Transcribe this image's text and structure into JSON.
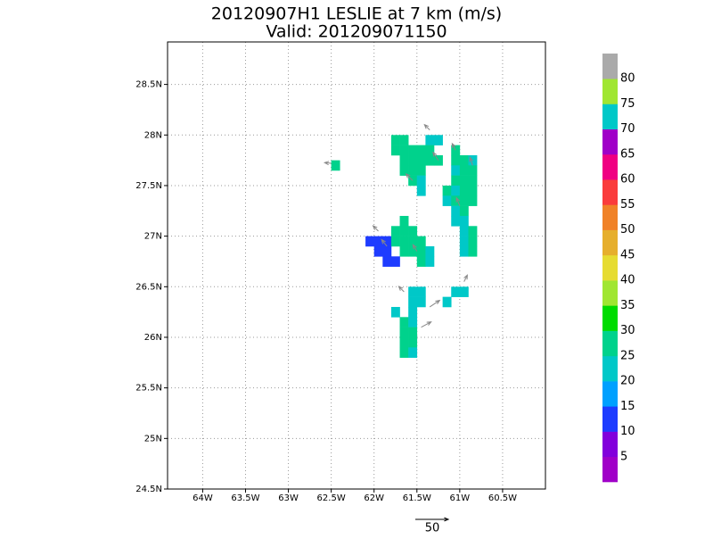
{
  "chart_data": {
    "type": "map",
    "title": "20120907H1 LESLIE at 7 km (m/s)",
    "subtitle": "Valid: 201209071150",
    "xlim": [
      -64.41,
      -60.0
    ],
    "ylim": [
      24.5,
      28.92
    ],
    "xticks": [
      {
        "value": -64,
        "label": "64W"
      },
      {
        "value": -63.5,
        "label": "63.5W"
      },
      {
        "value": -63,
        "label": "63W"
      },
      {
        "value": -62.5,
        "label": "62.5W"
      },
      {
        "value": -62,
        "label": "62W"
      },
      {
        "value": -61.5,
        "label": "61.5W"
      },
      {
        "value": -61,
        "label": "61W"
      },
      {
        "value": -60.5,
        "label": "60.5W"
      }
    ],
    "yticks": [
      {
        "value": 24.5,
        "label": "24.5N"
      },
      {
        "value": 25,
        "label": "25N"
      },
      {
        "value": 25.5,
        "label": "25.5N"
      },
      {
        "value": 26,
        "label": "26N"
      },
      {
        "value": 26.5,
        "label": "26.5N"
      },
      {
        "value": 27,
        "label": "27N"
      },
      {
        "value": 27.5,
        "label": "27.5N"
      },
      {
        "value": 28,
        "label": "28N"
      },
      {
        "value": 28.5,
        "label": "28.5N"
      }
    ],
    "grid": true,
    "colorbar": {
      "levels": [
        5,
        10,
        15,
        20,
        25,
        30,
        35,
        40,
        45,
        50,
        55,
        60,
        65,
        70,
        75,
        80
      ],
      "colors": [
        "#a000c8",
        "#8200dc",
        "#1e3cff",
        "#00a0ff",
        "#00c8c8",
        "#00d28c",
        "#00dc00",
        "#a0e632",
        "#e6dc32",
        "#e6af2d",
        "#f08228",
        "#fa3c3c",
        "#f00082",
        "#a000c8",
        "#00c8c8",
        "#a0e632",
        "#aaaaaa"
      ]
    },
    "cell_size": 0.1,
    "cells": {
      "lon": [
        -61.75,
        -61.65,
        -61.35,
        -61.25,
        -61.75,
        -61.65,
        -61.55,
        -61.45,
        -61.35,
        -61.05,
        -61.65,
        -61.55,
        -61.45,
        -61.35,
        -61.25,
        -61.05,
        -60.95,
        -60.85,
        -61.65,
        -61.55,
        -61.45,
        -61.05,
        -60.95,
        -60.85,
        -61.55,
        -61.45,
        -61.05,
        -60.95,
        -60.85,
        -61.45,
        -61.15,
        -61.05,
        -60.95,
        -60.85,
        -61.15,
        -61.05,
        -60.95,
        -60.85,
        -61.05,
        -60.95,
        -61.65,
        -61.05,
        -60.95,
        -61.75,
        -61.65,
        -61.55,
        -60.95,
        -60.85,
        -62.05,
        -61.95,
        -61.85,
        -61.75,
        -61.65,
        -61.55,
        -61.45,
        -60.95,
        -60.85,
        -61.95,
        -61.85,
        -61.65,
        -61.55,
        -61.45,
        -61.35,
        -60.95,
        -60.85,
        -61.85,
        -61.75,
        -61.45,
        -61.35,
        -61.55,
        -61.45,
        -61.05,
        -60.95,
        -61.55,
        -61.45,
        -61.15,
        -61.75,
        -61.55,
        -61.65,
        -61.55,
        -61.65,
        -61.55,
        -61.65,
        -61.55,
        -61.65,
        -61.55,
        -62.45
      ],
      "lat": [
        27.95,
        27.95,
        27.95,
        27.95,
        27.85,
        27.85,
        27.85,
        27.85,
        27.85,
        27.85,
        27.75,
        27.75,
        27.75,
        27.75,
        27.75,
        27.75,
        27.75,
        27.75,
        27.65,
        27.65,
        27.65,
        27.65,
        27.65,
        27.65,
        27.55,
        27.55,
        27.55,
        27.55,
        27.55,
        27.45,
        27.45,
        27.45,
        27.45,
        27.45,
        27.35,
        27.35,
        27.35,
        27.35,
        27.25,
        27.25,
        27.15,
        27.15,
        27.15,
        27.05,
        27.05,
        27.05,
        27.05,
        27.05,
        26.95,
        26.95,
        26.95,
        26.95,
        26.95,
        26.95,
        26.95,
        26.95,
        26.95,
        26.85,
        26.85,
        26.85,
        26.85,
        26.85,
        26.85,
        26.85,
        26.85,
        26.75,
        26.75,
        26.75,
        26.75,
        26.45,
        26.45,
        26.45,
        26.45,
        26.35,
        26.35,
        26.35,
        26.25,
        26.25,
        26.15,
        26.15,
        26.05,
        26.05,
        25.95,
        25.95,
        25.85,
        25.85,
        27.7
      ],
      "values": [
        25,
        25,
        20,
        20,
        25,
        28,
        25,
        25,
        25,
        25,
        25,
        28,
        28,
        25,
        28,
        25,
        25,
        20,
        25,
        25,
        25,
        22,
        28,
        25,
        25,
        20,
        25,
        25,
        25,
        22,
        25,
        20,
        25,
        28,
        22,
        25,
        25,
        28,
        20,
        25,
        25,
        20,
        22,
        25,
        28,
        25,
        22,
        28,
        12,
        12,
        12,
        25,
        25,
        28,
        25,
        20,
        25,
        12,
        14,
        25,
        28,
        25,
        20,
        20,
        25,
        12,
        14,
        25,
        20,
        20,
        20,
        20,
        22,
        20,
        20,
        20,
        22,
        20,
        25,
        22,
        25,
        25,
        25,
        25,
        25,
        22,
        28
      ]
    },
    "vectors": {
      "lon": [
        -62.5,
        -61.35,
        -61.05,
        -61.55,
        -61.95,
        -61.85,
        -61.65,
        -61.45,
        -61.35,
        -60.95,
        -61.0,
        -61.5,
        -61.25,
        -60.85
      ],
      "lat": [
        27.72,
        28.05,
        27.85,
        27.55,
        27.05,
        26.9,
        26.45,
        26.1,
        26.3,
        26.55,
        27.3,
        26.85,
        27.75,
        27.7
      ],
      "u": [
        -10,
        -8,
        -5,
        -10,
        -8,
        -8,
        -8,
        15,
        15,
        5,
        -5,
        -6,
        -8,
        -4
      ],
      "v": [
        1,
        8,
        10,
        10,
        8,
        10,
        8,
        8,
        10,
        10,
        12,
        10,
        12,
        12
      ]
    },
    "ref_vector": 50
  }
}
